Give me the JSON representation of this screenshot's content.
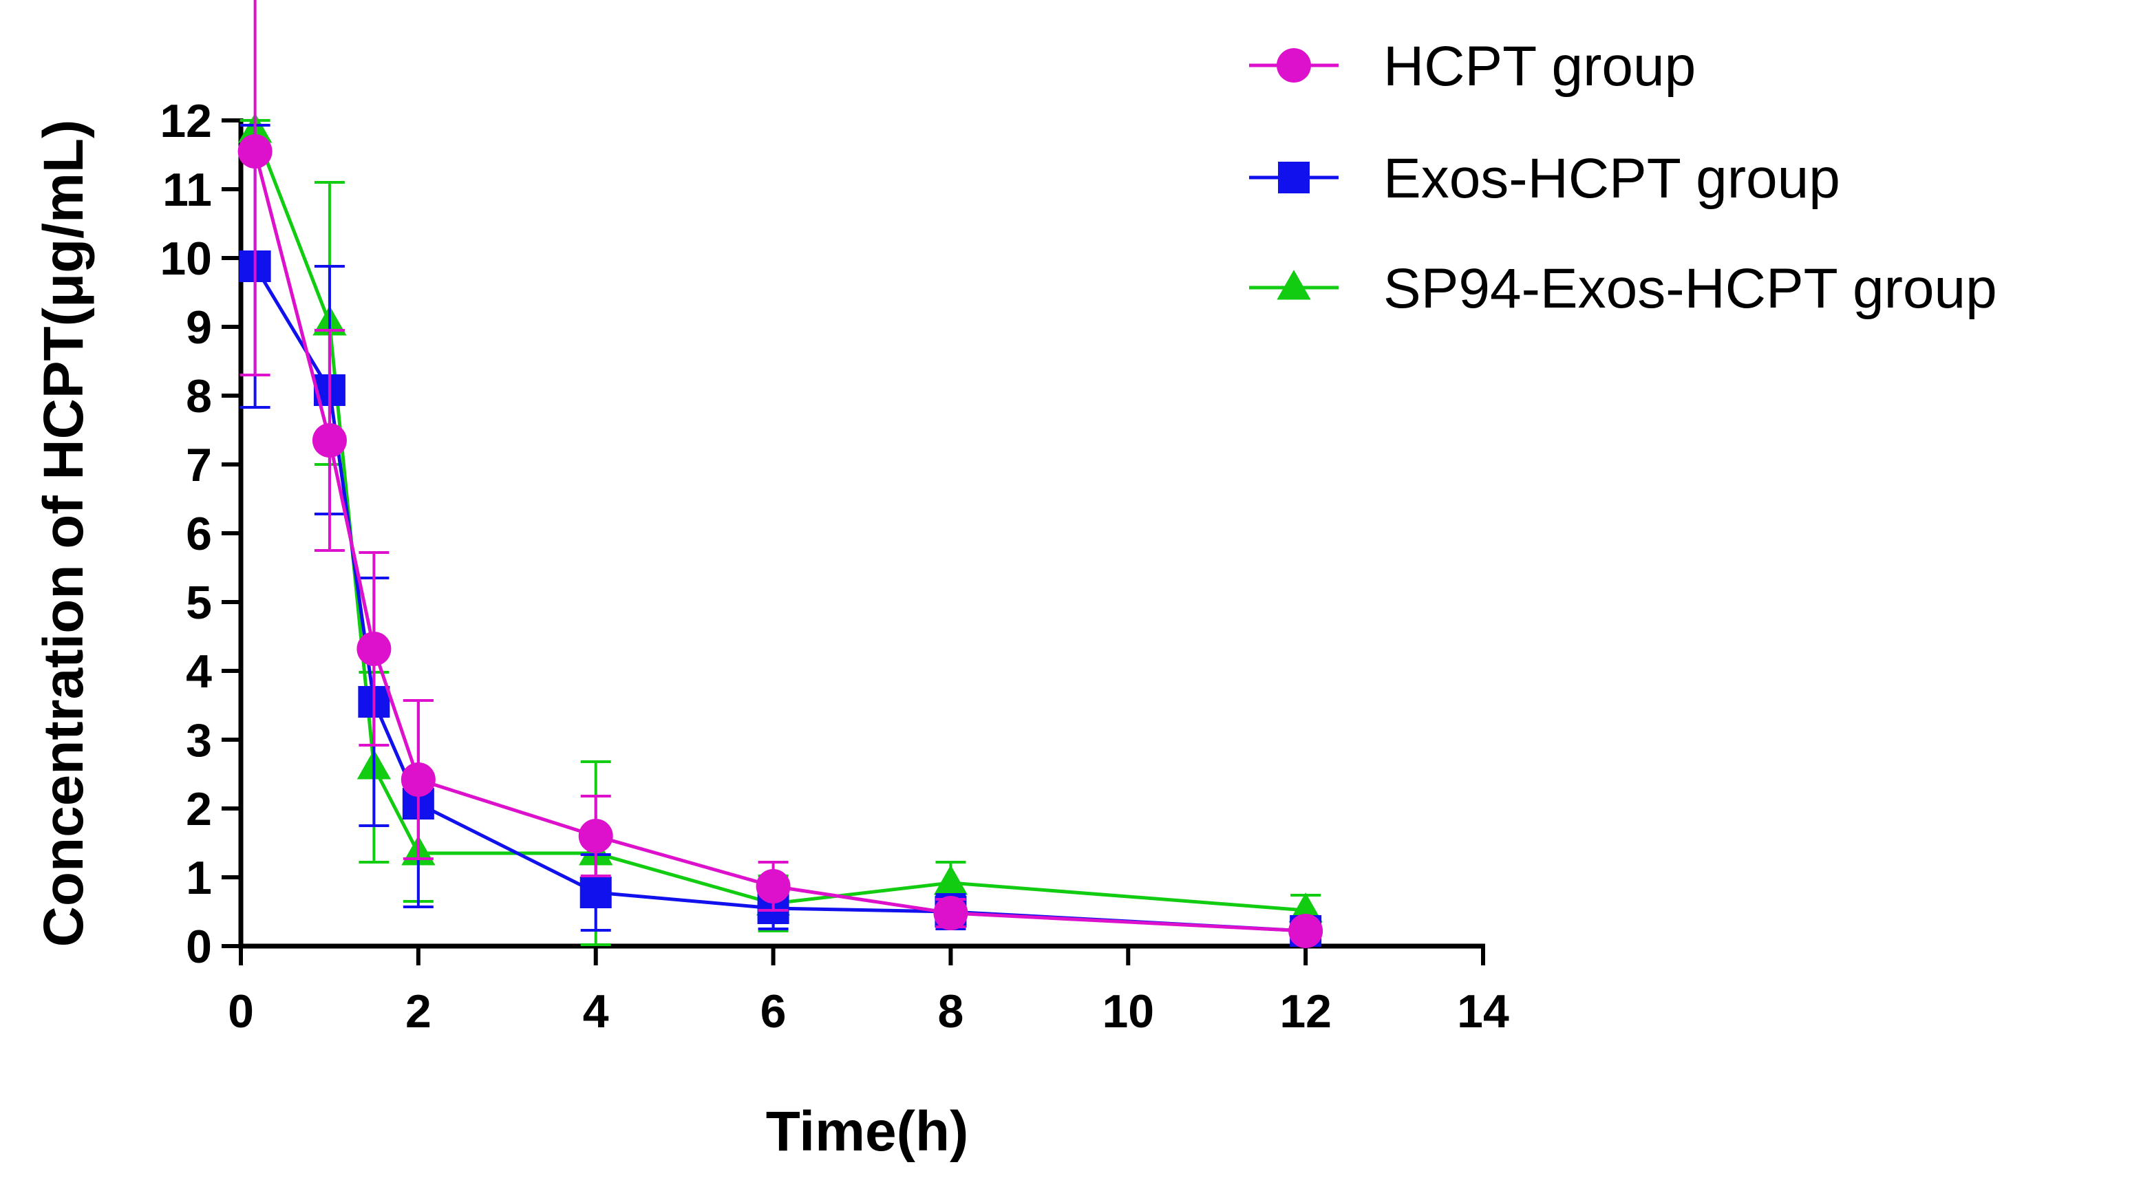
{
  "chart_data": {
    "type": "line",
    "title": "",
    "xlabel": "Time(h)",
    "ylabel": "Concentration of HCPT(μg/mL)",
    "xlim": [
      0,
      14
    ],
    "ylim": [
      0,
      12
    ],
    "xticks": [
      "0",
      "2",
      "4",
      "6",
      "8",
      "10",
      "12",
      "14"
    ],
    "yticks": [
      "0",
      "1",
      "2",
      "3",
      "4",
      "5",
      "6",
      "7",
      "8",
      "9",
      "10",
      "11",
      "12"
    ],
    "grid": false,
    "legend_position": "top-right",
    "series": [
      {
        "name": "HCPT group",
        "color": "#dd11cc",
        "marker": "circle",
        "x": [
          0.16,
          1,
          1.5,
          2,
          4,
          6,
          8,
          12
        ],
        "values": [
          11.55,
          7.35,
          4.32,
          2.42,
          1.6,
          0.87,
          0.48,
          0.22
        ],
        "error": [
          3.25,
          1.6,
          1.4,
          1.15,
          0.58,
          0.35,
          0.2,
          0.1
        ]
      },
      {
        "name": "Exos-HCPT group",
        "color": "#1111ee",
        "marker": "square",
        "x": [
          0.16,
          1,
          1.5,
          2,
          4,
          6,
          8,
          12
        ],
        "values": [
          9.88,
          8.08,
          3.55,
          2.07,
          0.78,
          0.55,
          0.5,
          0.22
        ],
        "error": [
          2.05,
          1.8,
          1.8,
          1.5,
          0.55,
          0.3,
          0.25,
          0.1
        ]
      },
      {
        "name": "SP94-Exos-HCPT group",
        "color": "#11cc11",
        "marker": "triangle",
        "x": [
          0.16,
          1,
          1.5,
          2,
          4,
          6,
          8,
          12
        ],
        "values": [
          11.85,
          9.05,
          2.6,
          1.35,
          1.35,
          0.62,
          0.92,
          0.52
        ],
        "error": [
          0.15,
          2.05,
          1.38,
          0.7,
          1.33,
          0.4,
          0.3,
          0.22
        ]
      }
    ]
  }
}
